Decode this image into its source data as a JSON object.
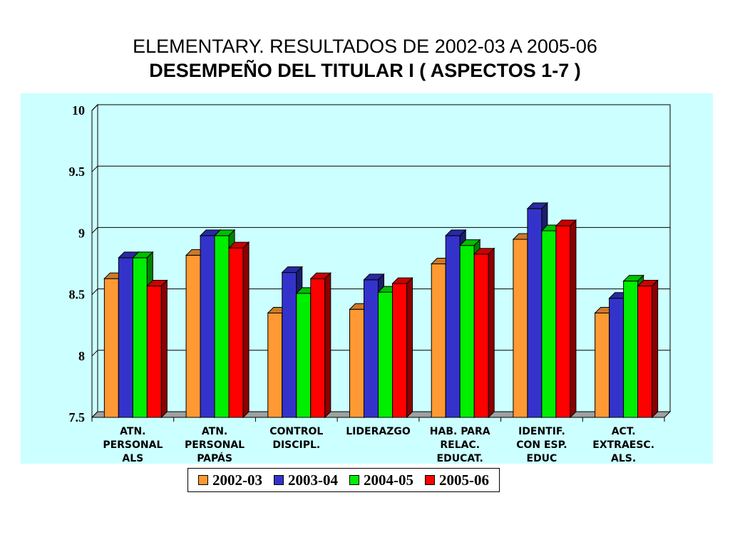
{
  "title": {
    "line1": "ELEMENTARY. RESULTADOS DE 2002-03 A 2005-06",
    "line2": "DESEMPEÑO DEL TITULAR  I ( ASPECTOS  1-7 )"
  },
  "chart_data": {
    "type": "bar",
    "categories": [
      [
        "ATN.",
        "PERSONAL",
        "ALS"
      ],
      [
        "ATN.",
        "PERSONAL",
        "PAPÁS"
      ],
      [
        "CONTROL",
        "DISCIPL."
      ],
      [
        "LIDERAZGO"
      ],
      [
        "HAB. PARA",
        "RELAC.",
        "EDUCAT."
      ],
      [
        "IDENTIF.",
        "CON ESP.",
        "EDUC"
      ],
      [
        "ACT.",
        "EXTRAESC.",
        "ALS."
      ]
    ],
    "series": [
      {
        "name": "2002-03",
        "color": "#ff9933",
        "values": [
          8.63,
          8.82,
          8.35,
          8.38,
          8.75,
          8.95,
          8.35
        ]
      },
      {
        "name": "2003-04",
        "color": "#3333cc",
        "values": [
          8.8,
          8.98,
          8.68,
          8.62,
          8.98,
          9.2,
          8.47
        ]
      },
      {
        "name": "2004-05",
        "color": "#00ee00",
        "values": [
          8.8,
          8.98,
          8.51,
          8.52,
          8.9,
          9.02,
          8.61
        ]
      },
      {
        "name": "2005-06",
        "color": "#ff0000",
        "values": [
          8.57,
          8.88,
          8.63,
          8.59,
          8.83,
          9.06,
          8.57
        ]
      }
    ],
    "ylim": [
      7.5,
      10
    ],
    "yticks": [
      "7.5",
      "8",
      "8.5",
      "9",
      "9.5",
      "10"
    ],
    "grid": true,
    "legend_position": "bottom"
  }
}
